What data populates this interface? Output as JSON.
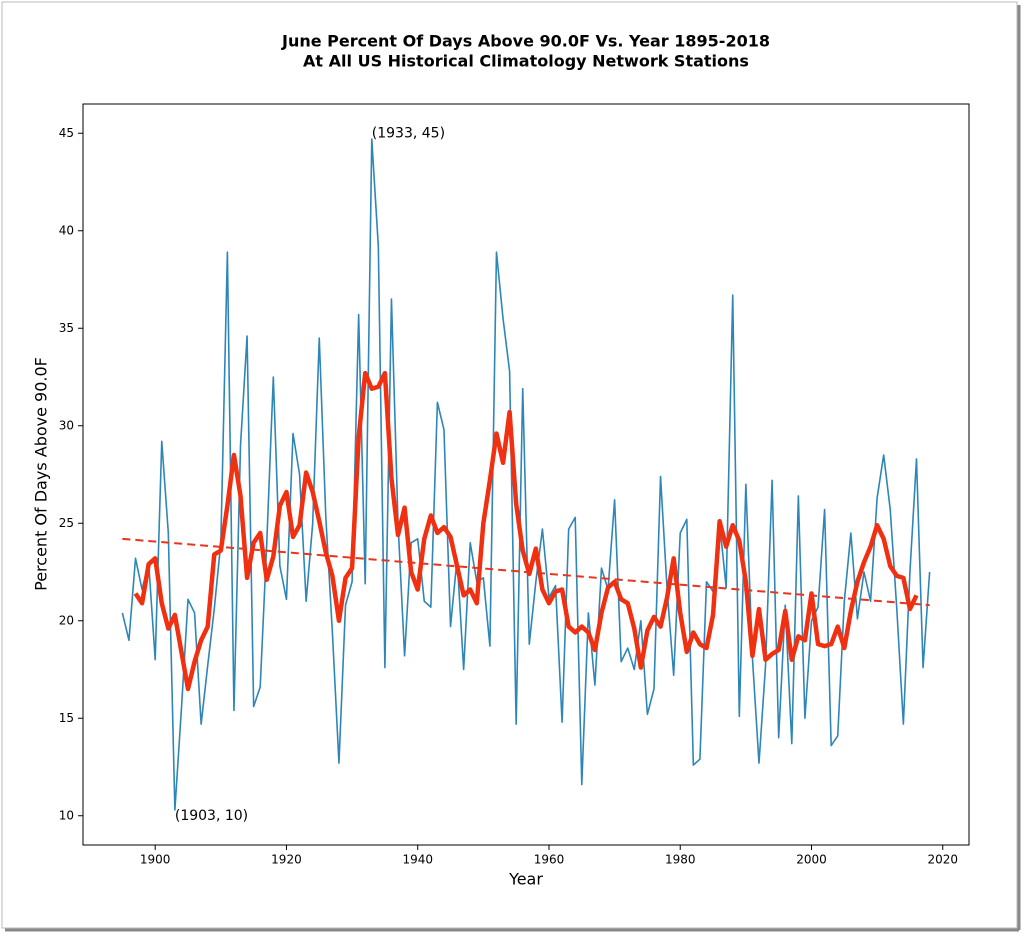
{
  "chart_data": {
    "type": "line",
    "title": [
      "June Percent Of Days Above 90.0F Vs. Year 1895-2018",
      "At All US Historical Climatology Network Stations"
    ],
    "xlabel": "Year",
    "ylabel": "Percent Of Days Above 90.0F",
    "xlim": [
      1889,
      2024
    ],
    "ylim": [
      8.5,
      46.5
    ],
    "xticks": [
      1900,
      1920,
      1940,
      1960,
      1980,
      2000,
      2020
    ],
    "yticks": [
      10,
      15,
      20,
      25,
      30,
      35,
      40,
      45
    ],
    "series": [
      {
        "color": "#2e86b8",
        "width": 1.6,
        "dash": false,
        "x": [
          1895,
          1896,
          1897,
          1898,
          1899,
          1900,
          1901,
          1902,
          1903,
          1904,
          1905,
          1906,
          1907,
          1908,
          1909,
          1910,
          1911,
          1912,
          1913,
          1914,
          1915,
          1916,
          1917,
          1918,
          1919,
          1920,
          1921,
          1922,
          1923,
          1924,
          1925,
          1926,
          1927,
          1928,
          1929,
          1930,
          1931,
          1932,
          1933,
          1934,
          1935,
          1936,
          1937,
          1938,
          1939,
          1940,
          1941,
          1942,
          1943,
          1944,
          1945,
          1946,
          1947,
          1948,
          1949,
          1950,
          1951,
          1952,
          1953,
          1954,
          1955,
          1956,
          1957,
          1958,
          1959,
          1960,
          1961,
          1962,
          1963,
          1964,
          1965,
          1966,
          1967,
          1968,
          1969,
          1970,
          1971,
          1972,
          1973,
          1974,
          1975,
          1976,
          1977,
          1978,
          1979,
          1980,
          1981,
          1982,
          1983,
          1984,
          1985,
          1986,
          1987,
          1988,
          1989,
          1990,
          1991,
          1992,
          1993,
          1994,
          1995,
          1996,
          1997,
          1998,
          1999,
          2000,
          2001,
          2002,
          2003,
          2004,
          2005,
          2006,
          2007,
          2008,
          2009,
          2010,
          2011,
          2012,
          2013,
          2014,
          2015,
          2016,
          2017,
          2018
        ],
        "values": [
          20.4,
          19.0,
          23.2,
          21.6,
          23.0,
          18.0,
          29.2,
          24.5,
          10.3,
          15.5,
          21.1,
          20.4,
          14.7,
          17.7,
          20.6,
          24.0,
          38.9,
          15.4,
          29.0,
          34.6,
          15.6,
          16.6,
          24.0,
          32.5,
          22.8,
          21.1,
          29.6,
          27.5,
          21.0,
          25.0,
          34.5,
          25.3,
          19.4,
          12.7,
          20.8,
          22.0,
          35.7,
          21.9,
          44.7,
          39.2,
          17.6,
          36.5,
          25.0,
          18.2,
          24.0,
          24.2,
          21.0,
          20.7,
          31.2,
          29.8,
          19.7,
          23.2,
          17.5,
          24.0,
          22.0,
          22.2,
          18.7,
          38.9,
          35.5,
          32.8,
          14.7,
          31.9,
          18.8,
          22.0,
          24.7,
          21.2,
          21.8,
          14.8,
          24.7,
          25.3,
          11.6,
          20.4,
          16.7,
          22.7,
          21.6,
          26.2,
          17.9,
          18.6,
          17.5,
          20.0,
          15.2,
          16.5,
          27.4,
          21.6,
          17.2,
          24.5,
          25.2,
          12.6,
          12.9,
          22.0,
          21.5,
          25.0,
          21.7,
          36.7,
          15.1,
          27.0,
          18.1,
          12.7,
          17.7,
          27.2,
          14.0,
          20.8,
          13.7,
          26.4,
          15.0,
          20.0,
          20.7,
          25.7,
          13.6,
          14.1,
          21.0,
          24.5,
          20.1,
          22.5,
          21.0,
          26.3,
          28.5,
          25.7,
          20.6,
          14.7,
          22.5,
          28.3,
          17.6,
          22.5
        ]
      },
      {
        "color": "#f03010",
        "width": 4.5,
        "dash": false,
        "x": [
          1897,
          1898,
          1899,
          1900,
          1901,
          1902,
          1903,
          1904,
          1905,
          1906,
          1907,
          1908,
          1909,
          1910,
          1911,
          1912,
          1913,
          1914,
          1915,
          1916,
          1917,
          1918,
          1919,
          1920,
          1921,
          1922,
          1923,
          1924,
          1925,
          1926,
          1927,
          1928,
          1929,
          1930,
          1931,
          1932,
          1933,
          1934,
          1935,
          1936,
          1937,
          1938,
          1939,
          1940,
          1941,
          1942,
          1943,
          1944,
          1945,
          1946,
          1947,
          1948,
          1949,
          1950,
          1951,
          1952,
          1953,
          1954,
          1955,
          1956,
          1957,
          1958,
          1959,
          1960,
          1961,
          1962,
          1963,
          1964,
          1965,
          1966,
          1967,
          1968,
          1969,
          1970,
          1971,
          1972,
          1973,
          1974,
          1975,
          1976,
          1977,
          1978,
          1979,
          1980,
          1981,
          1982,
          1983,
          1984,
          1985,
          1986,
          1987,
          1988,
          1989,
          1990,
          1991,
          1992,
          1993,
          1994,
          1995,
          1996,
          1997,
          1998,
          1999,
          2000,
          2001,
          2002,
          2003,
          2004,
          2005,
          2006,
          2007,
          2008,
          2009,
          2010,
          2011,
          2012,
          2013,
          2014,
          2015,
          2016
        ],
        "values": [
          21.4,
          20.9,
          22.9,
          23.2,
          20.9,
          19.6,
          20.3,
          18.4,
          16.5,
          17.9,
          19.0,
          19.7,
          23.4,
          23.6,
          25.9,
          28.5,
          26.4,
          22.2,
          24.0,
          24.5,
          22.1,
          23.3,
          25.9,
          26.6,
          24.3,
          24.9,
          27.6,
          26.6,
          25.1,
          23.5,
          22.3,
          20.0,
          22.2,
          22.7,
          29.4,
          32.7,
          31.9,
          32.0,
          32.7,
          27.3,
          24.4,
          25.8,
          22.5,
          21.6,
          24.2,
          25.4,
          24.5,
          24.8,
          24.3,
          22.8,
          21.3,
          21.6,
          20.9,
          25.0,
          27.2,
          29.6,
          28.1,
          30.7,
          26.0,
          23.6,
          22.4,
          23.7,
          21.6,
          20.9,
          21.5,
          21.6,
          19.7,
          19.4,
          19.7,
          19.4,
          18.5,
          20.4,
          21.7,
          22.0,
          21.1,
          20.9,
          19.6,
          17.6,
          19.5,
          20.2,
          19.7,
          21.2,
          23.2,
          20.4,
          18.4,
          19.4,
          18.8,
          18.6,
          20.3,
          25.1,
          23.8,
          24.9,
          24.1,
          22.0,
          18.2,
          20.6,
          18.0,
          18.3,
          18.5,
          20.5,
          18.0,
          19.2,
          19.0,
          21.4,
          18.8,
          18.7,
          18.8,
          19.7,
          18.6,
          20.5,
          22.0,
          23.0,
          23.8,
          24.9,
          24.2,
          22.8,
          22.3,
          22.2,
          20.6,
          21.3
        ]
      },
      {
        "color": "#e8341c",
        "width": 2,
        "dash": true,
        "x": [
          1895,
          2018
        ],
        "values": [
          24.2,
          20.8
        ]
      }
    ],
    "annotations": [
      {
        "text": "(1933, 45)",
        "x": 1933,
        "y": 45
      },
      {
        "text": "(1903, 10)",
        "x": 1903,
        "y": 10
      }
    ]
  }
}
